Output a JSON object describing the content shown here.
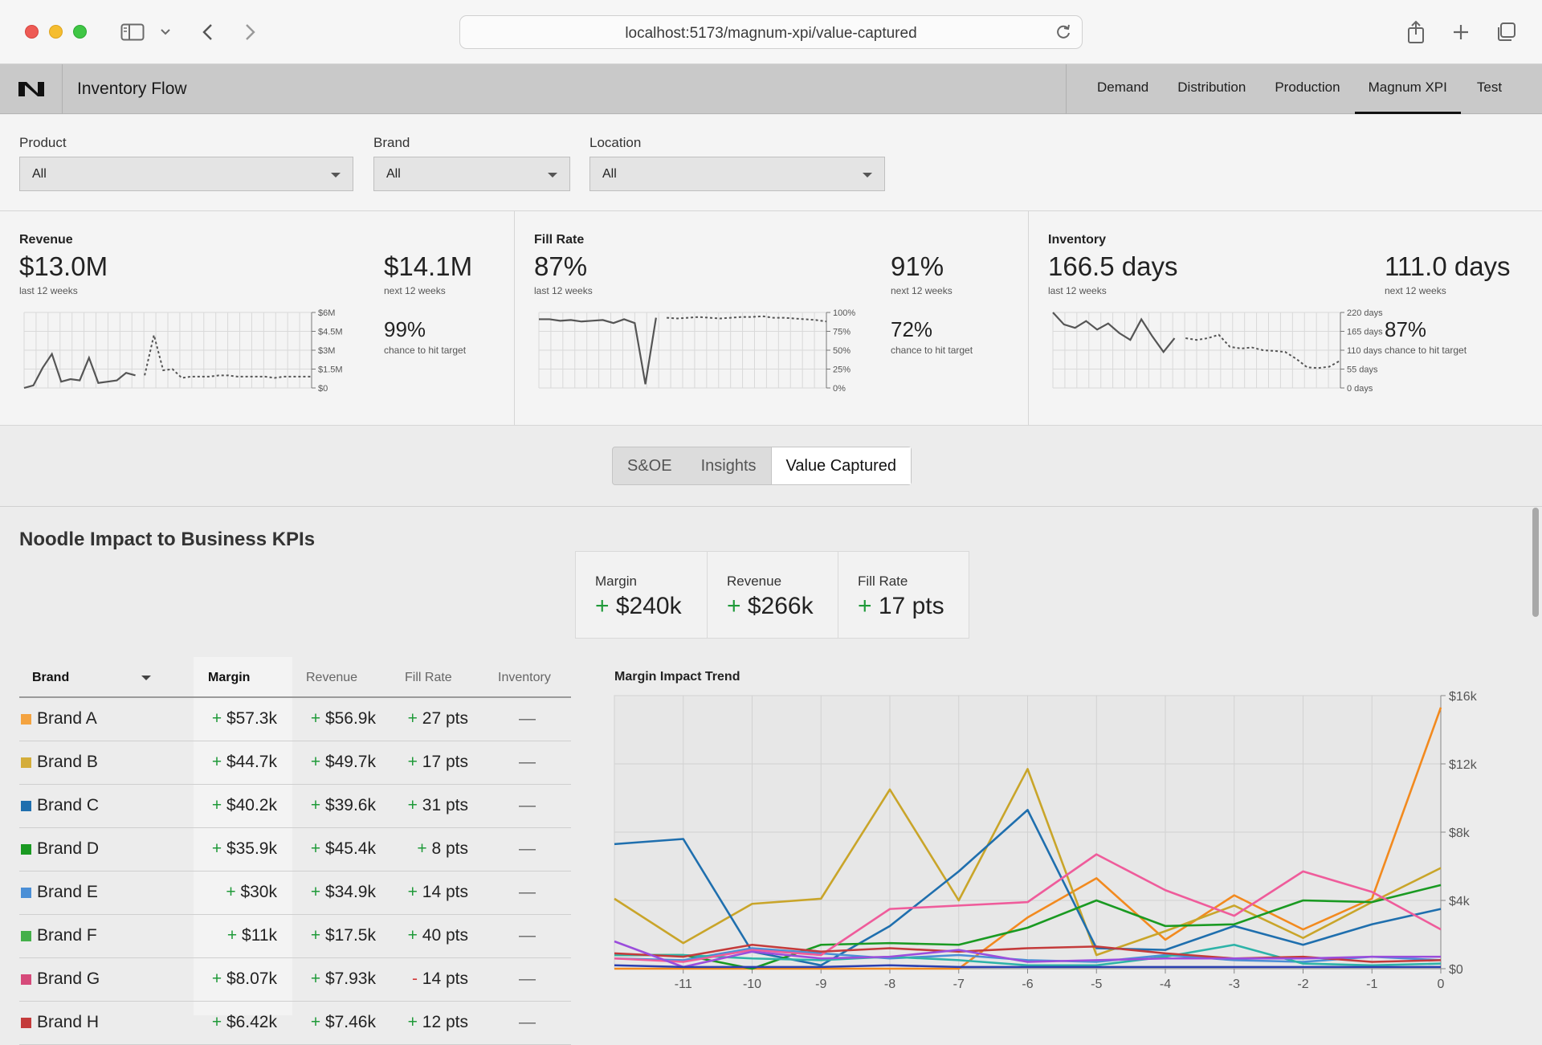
{
  "browser": {
    "url": "localhost:5173/magnum-xpi/value-captured"
  },
  "app": {
    "title": "Inventory Flow",
    "nav": [
      {
        "label": "Demand",
        "active": false
      },
      {
        "label": "Distribution",
        "active": false
      },
      {
        "label": "Production",
        "active": false
      },
      {
        "label": "Magnum XPI",
        "active": true
      },
      {
        "label": "Test",
        "active": false
      }
    ]
  },
  "filters": [
    {
      "label": "Product",
      "value": "All"
    },
    {
      "label": "Brand",
      "value": "All"
    },
    {
      "label": "Location",
      "value": "All"
    }
  ],
  "kpis": [
    {
      "title": "Revenue",
      "past_value": "$13.0M",
      "past_label": "last 12 weeks",
      "next_value": "$14.1M",
      "next_label": "next 12 weeks",
      "chance_value": "99%",
      "chance_label": "chance to hit target",
      "axis_ticks": [
        "$6M",
        "$4.5M",
        "$3M",
        "$1.5M",
        "$0"
      ],
      "history": [
        0.0,
        0.2,
        1.6,
        2.7,
        0.5,
        0.7,
        0.6,
        2.4,
        0.4,
        0.5,
        0.6,
        1.2,
        1.0
      ],
      "forecast": [
        1.0,
        4.2,
        1.4,
        1.5,
        0.8,
        0.9,
        0.9,
        0.9,
        1.0,
        1.0,
        0.9,
        0.9,
        0.9,
        0.9,
        0.8,
        0.9,
        0.9,
        0.9,
        0.9
      ],
      "max": 6
    },
    {
      "title": "Fill Rate",
      "past_value": "87%",
      "past_label": "last 12 weeks",
      "next_value": "91%",
      "next_label": "next 12 weeks",
      "chance_value": "72%",
      "chance_label": "chance to hit target",
      "axis_ticks": [
        "100%",
        "75%",
        "50%",
        "25%",
        "0%"
      ],
      "history": [
        91,
        91,
        89,
        90,
        88,
        89,
        90,
        86,
        91,
        86,
        5,
        93
      ],
      "forecast": [
        93,
        92,
        93,
        94,
        93,
        92,
        93,
        94,
        94,
        95,
        93,
        93,
        92,
        91,
        90,
        88
      ],
      "max": 100
    },
    {
      "title": "Inventory",
      "past_value": "166.5 days",
      "past_label": "last 12 weeks",
      "next_value": "111.0 days",
      "next_label": "next 12 weeks",
      "chance_value": "87%",
      "chance_label": "chance to hit target",
      "axis_ticks": [
        "220 days",
        "165 days",
        "110 days",
        "55 days",
        "0 days"
      ],
      "history": [
        220,
        185,
        175,
        195,
        170,
        188,
        160,
        140,
        200,
        150,
        105,
        145
      ],
      "forecast": [
        145,
        140,
        145,
        155,
        120,
        115,
        118,
        110,
        108,
        105,
        85,
        60,
        58,
        62,
        80
      ],
      "max": 220
    }
  ],
  "tabs": [
    {
      "label": "S&OE",
      "active": false
    },
    {
      "label": "Insights",
      "active": false
    },
    {
      "label": "Value Captured",
      "active": true
    }
  ],
  "impact": {
    "title": "Noodle Impact to Business KPIs",
    "cards": [
      {
        "label": "Margin",
        "sign": "+",
        "value": "$240k"
      },
      {
        "label": "Revenue",
        "sign": "+",
        "value": "$266k"
      },
      {
        "label": "Fill Rate",
        "sign": "+",
        "value": "17 pts"
      }
    ]
  },
  "table": {
    "headers": [
      "Brand",
      "Margin",
      "Revenue",
      "Fill Rate",
      "Inventory"
    ],
    "rows": [
      {
        "brand": "Brand A",
        "color": "#f4a340",
        "margin_sign": "+",
        "margin": "$57.3k",
        "revenue_sign": "+",
        "revenue": "$56.9k",
        "fill_sign": "+",
        "fill": "27 pts",
        "inventory": "—"
      },
      {
        "brand": "Brand B",
        "color": "#d4ad3a",
        "margin_sign": "+",
        "margin": "$44.7k",
        "revenue_sign": "+",
        "revenue": "$49.7k",
        "fill_sign": "+",
        "fill": "17 pts",
        "inventory": "—"
      },
      {
        "brand": "Brand C",
        "color": "#1f6fae",
        "margin_sign": "+",
        "margin": "$40.2k",
        "revenue_sign": "+",
        "revenue": "$39.6k",
        "fill_sign": "+",
        "fill": "31 pts",
        "inventory": "—"
      },
      {
        "brand": "Brand D",
        "color": "#1a9a22",
        "margin_sign": "+",
        "margin": "$35.9k",
        "revenue_sign": "+",
        "revenue": "$45.4k",
        "fill_sign": "+",
        "fill": "8 pts",
        "inventory": "—"
      },
      {
        "brand": "Brand E",
        "color": "#4b8fd6",
        "margin_sign": "+",
        "margin": "$30k",
        "revenue_sign": "+",
        "revenue": "$34.9k",
        "fill_sign": "+",
        "fill": "14 pts",
        "inventory": "—"
      },
      {
        "brand": "Brand F",
        "color": "#44b04a",
        "margin_sign": "+",
        "margin": "$11k",
        "revenue_sign": "+",
        "revenue": "$17.5k",
        "fill_sign": "+",
        "fill": "40 pts",
        "inventory": "—"
      },
      {
        "brand": "Brand G",
        "color": "#d64a7a",
        "margin_sign": "+",
        "margin": "$8.07k",
        "revenue_sign": "+",
        "revenue": "$7.93k",
        "fill_sign": "-",
        "fill": "14 pts",
        "inventory": "—"
      },
      {
        "brand": "Brand H",
        "color": "#c43b3b",
        "margin_sign": "+",
        "margin": "$6.42k",
        "revenue_sign": "+",
        "revenue": "$7.46k",
        "fill_sign": "+",
        "fill": "12 pts",
        "inventory": "—"
      }
    ]
  },
  "chart_data": {
    "type": "line",
    "title": "Margin Impact Trend",
    "xlabel": "",
    "ylabel": "",
    "x": [
      -12,
      -11,
      -10,
      -9,
      -8,
      -7,
      -6,
      -5,
      -4,
      -3,
      -2,
      -1,
      0
    ],
    "x_ticks": [
      "-11",
      "-10",
      "-9",
      "-8",
      "-7",
      "-6",
      "-5",
      "-4",
      "-3",
      "-2",
      "-1",
      "0"
    ],
    "y_ticks": [
      "$16k",
      "$12k",
      "$8k",
      "$4k",
      "$0"
    ],
    "ylim": [
      0,
      16000
    ],
    "grid": true,
    "series": [
      {
        "color": "#f28a1f",
        "values": [
          0,
          0,
          0,
          0,
          0,
          0,
          3000,
          5300,
          1700,
          4300,
          2300,
          4100,
          15300
        ]
      },
      {
        "color": "#c9a52a",
        "values": [
          4100,
          1500,
          3800,
          4100,
          10500,
          4000,
          11700,
          800,
          2200,
          3700,
          1800,
          3900,
          5900
        ]
      },
      {
        "color": "#1f6fae",
        "values": [
          7300,
          7600,
          1000,
          200,
          2500,
          5700,
          9300,
          1200,
          1100,
          2500,
          1400,
          2600,
          3500
        ]
      },
      {
        "color": "#1a9a22",
        "values": [
          800,
          800,
          0,
          1400,
          1500,
          1400,
          2400,
          4000,
          2500,
          2600,
          4000,
          3900,
          4900
        ]
      },
      {
        "color": "#4b8fd6",
        "values": [
          600,
          500,
          1200,
          900,
          600,
          800,
          500,
          400,
          800,
          500,
          400,
          700,
          500
        ]
      },
      {
        "color": "#2db3a8",
        "values": [
          800,
          800,
          600,
          500,
          700,
          500,
          200,
          200,
          700,
          1400,
          300,
          200,
          300
        ]
      },
      {
        "color": "#ef5c9b",
        "values": [
          600,
          400,
          1100,
          800,
          3500,
          3700,
          3900,
          6700,
          4600,
          3100,
          5700,
          4500,
          2300
        ]
      },
      {
        "color": "#c43b3b",
        "values": [
          900,
          700,
          1400,
          1000,
          1200,
          1000,
          1200,
          1300,
          900,
          600,
          700,
          400,
          500
        ]
      },
      {
        "color": "#9b4ddc",
        "values": [
          1600,
          100,
          1000,
          600,
          700,
          1100,
          400,
          500,
          600,
          600,
          600,
          700,
          700
        ]
      },
      {
        "color": "#2a3fb0",
        "values": [
          200,
          100,
          100,
          100,
          200,
          100,
          100,
          100,
          100,
          100,
          100,
          100,
          100
        ]
      }
    ]
  }
}
